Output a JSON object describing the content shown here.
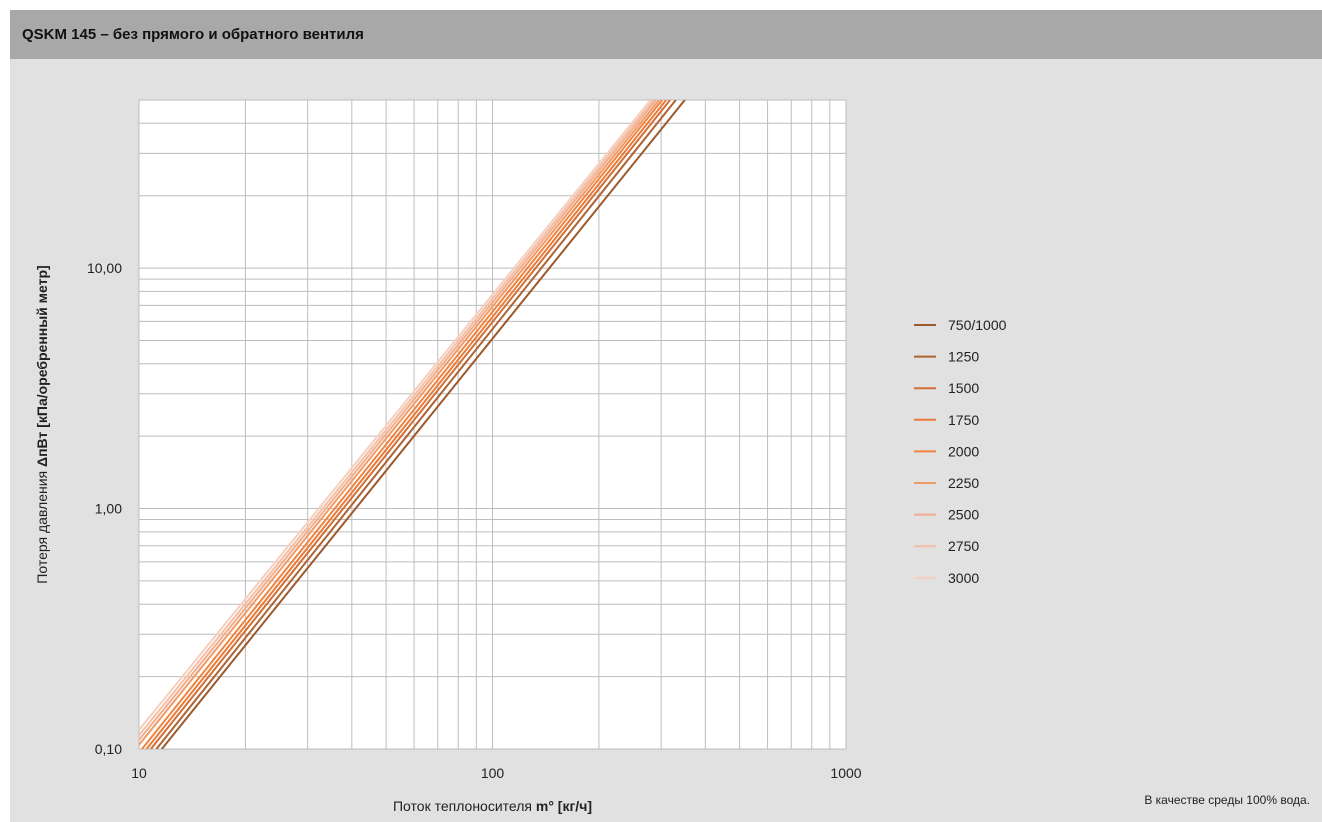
{
  "header": {
    "title": "QSKM 145 – без прямого и обратного вентиля"
  },
  "footnote": "В качестве среды 100% вода.",
  "colors": {
    "background": "#e1e1e1",
    "header_bar": "#a8a8a8",
    "plot_area": "#ffffff",
    "grid": "#bdbdbd"
  },
  "chart_data": {
    "type": "line",
    "title": "",
    "xlabel": {
      "prefix": "Поток теплоносителя ",
      "bold": "m° [кг/ч]"
    },
    "ylabel": {
      "prefix": "Потеря давления ",
      "bold": "ΔпВт [кПа/оребренный метр]"
    },
    "x_scale": "log",
    "y_scale": "log",
    "xlim": [
      10,
      1000
    ],
    "ylim": [
      0.1,
      50
    ],
    "x_ticks": [
      {
        "value": 10,
        "label": "10"
      },
      {
        "value": 100,
        "label": "100"
      },
      {
        "value": 1000,
        "label": "1000"
      }
    ],
    "y_ticks": [
      {
        "value": 0.1,
        "label": "0,10"
      },
      {
        "value": 1,
        "label": "1,00"
      },
      {
        "value": 10,
        "label": "10,00"
      }
    ],
    "grid": true,
    "legend_position": "right",
    "series": [
      {
        "name": "750/1000",
        "color": "#9c5a2c",
        "points": [
          [
            11.6,
            0.1
          ],
          [
            350,
            50
          ]
        ]
      },
      {
        "name": "1250",
        "color": "#ae6230",
        "points": [
          [
            11.2,
            0.1
          ],
          [
            330,
            50
          ]
        ]
      },
      {
        "name": "1500",
        "color": "#d46f34",
        "points": [
          [
            10.8,
            0.1
          ],
          [
            318,
            50
          ]
        ]
      },
      {
        "name": "1750",
        "color": "#ea7a3a",
        "points": [
          [
            10.5,
            0.1
          ],
          [
            310,
            50
          ]
        ]
      },
      {
        "name": "2000",
        "color": "#f0843e",
        "points": [
          [
            10.2,
            0.1
          ],
          [
            302,
            50
          ]
        ]
      },
      {
        "name": "2250",
        "color": "#f29a66",
        "points": [
          [
            10.0,
            0.104
          ],
          [
            296,
            50
          ]
        ]
      },
      {
        "name": "2500",
        "color": "#f2ad8c",
        "points": [
          [
            10.0,
            0.109
          ],
          [
            290,
            50
          ]
        ]
      },
      {
        "name": "2750",
        "color": "#f4bfa6",
        "points": [
          [
            10.0,
            0.114
          ],
          [
            285,
            50
          ]
        ]
      },
      {
        "name": "3000",
        "color": "#f6cfbd",
        "points": [
          [
            10.0,
            0.12
          ],
          [
            280,
            50
          ]
        ]
      }
    ]
  }
}
